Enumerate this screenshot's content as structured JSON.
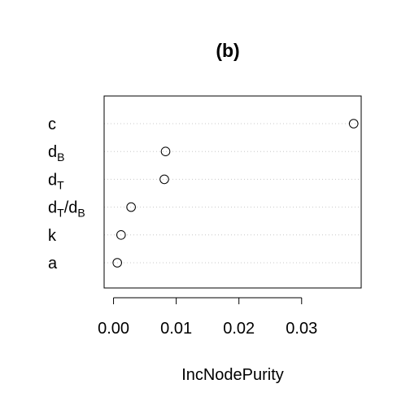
{
  "chart_data": {
    "type": "scatter",
    "title": "(b)",
    "xlabel": "IncNodePurity",
    "ylabel": "",
    "xlim": [
      -0.0015,
      0.0395
    ],
    "xticks": [
      "0.00",
      "0.01",
      "0.02",
      "0.03"
    ],
    "xtick_values": [
      0,
      0.01,
      0.02,
      0.03
    ],
    "grid": "horizontal dotted",
    "categories": [
      {
        "label": "c",
        "main": "c",
        "sub": "",
        "value": 0.0383
      },
      {
        "label": "dB",
        "main": "d",
        "sub": "B",
        "value": 0.0083
      },
      {
        "label": "dT",
        "main": "d",
        "sub": "T",
        "value": 0.0081
      },
      {
        "label": "dT/dB",
        "main": "d",
        "sub": "T",
        "slash": "/",
        "main2": "d",
        "sub2": "B",
        "value": 0.0028
      },
      {
        "label": "k",
        "main": "k",
        "sub": "",
        "value": 0.0012
      },
      {
        "label": "a",
        "main": "a",
        "sub": "",
        "value": 0.0006
      }
    ]
  }
}
